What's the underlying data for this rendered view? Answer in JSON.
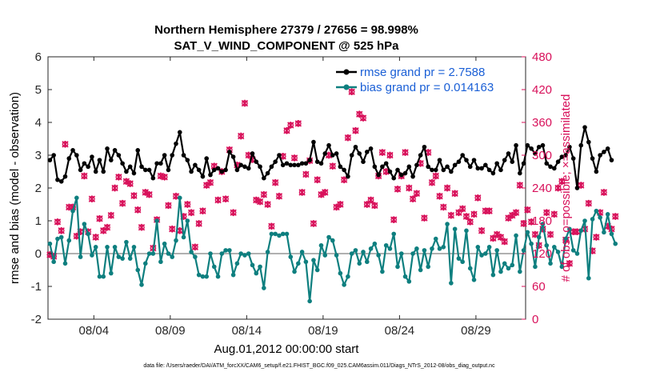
{
  "chart_data": {
    "type": "line",
    "title_line1": "Northern Hemisphere 27379 / 27656 = 98.998%",
    "title_line2": "SAT_V_WIND_COMPONENT @ 525 hPa",
    "ylabel_left": "rmse and bias (model - observation)",
    "ylabel_right": "# of obs: o=possible; ×=assimilated",
    "xlabel": "Aug.01,2012 00:00:00 start",
    "footnote": "data file: /Users/raeder/DAI/ATM_forcXX/CAM6_setup/f.e21.FHIST_BGC.f09_025.CAM6assim.011/Diags_NTrS_2012-08/obs_diag_output.nc",
    "xlim": [
      1,
      32.25
    ],
    "ylim_left": [
      -2,
      6
    ],
    "ylim_right": [
      0,
      480
    ],
    "yticks_left": [
      "-2",
      "-1",
      "0",
      "1",
      "2",
      "3",
      "4",
      "5",
      "6"
    ],
    "yticks_right": [
      "0",
      "60",
      "120",
      "180",
      "240",
      "300",
      "360",
      "420",
      "480"
    ],
    "xticks": [
      {
        "day": 4,
        "label": "08/04"
      },
      {
        "day": 9,
        "label": "08/09"
      },
      {
        "day": 14,
        "label": "08/14"
      },
      {
        "day": 19,
        "label": "08/19"
      },
      {
        "day": 24,
        "label": "08/24"
      },
      {
        "day": 29,
        "label": "08/29"
      }
    ],
    "legend": [
      {
        "label": "rmse grand pr = 2.7588",
        "color": "#000000"
      },
      {
        "label": "bias grand pr = 0.014163",
        "color": "#0e7f7f"
      }
    ],
    "colors": {
      "rmse": "#000000",
      "bias": "#0e7f7f",
      "obs": "#d8105a",
      "zero_line": "#b0b0b0",
      "legend_text": "#1a5fd6",
      "right_axis": "#d8105a"
    },
    "series": [
      {
        "name": "rmse",
        "values": [
          2.85,
          3.0,
          2.25,
          2.2,
          2.35,
          2.9,
          3.15,
          3.0,
          2.55,
          2.75,
          2.65,
          2.95,
          2.5,
          2.85,
          2.5,
          3.2,
          2.85,
          3.15,
          3.0,
          2.75,
          2.5,
          2.65,
          2.45,
          3.15,
          2.65,
          2.55,
          2.55,
          2.3,
          2.75,
          2.75,
          3.0,
          2.55,
          3.0,
          3.35,
          3.7,
          3.0,
          2.85,
          2.5,
          2.7,
          2.55,
          2.35,
          2.9,
          2.4,
          2.55,
          2.6,
          2.5,
          2.55,
          3.1,
          2.95,
          2.55,
          2.7,
          2.65,
          2.6,
          3.05,
          2.8,
          2.65,
          2.3,
          2.45,
          2.65,
          2.8,
          3.0,
          2.7,
          2.75,
          2.7,
          2.7,
          2.7,
          2.75,
          2.75,
          2.85,
          3.4,
          2.8,
          2.75,
          3.05,
          3.3,
          3.0,
          3.05,
          2.65,
          2.55,
          2.35,
          3.0,
          3.25,
          3.05,
          2.8,
          3.1,
          3.2,
          2.65,
          2.4,
          2.65,
          2.75,
          2.5,
          2.3,
          2.55,
          2.4,
          2.45,
          2.65,
          2.35,
          2.7,
          3.0,
          3.25,
          2.65,
          2.55,
          2.55,
          2.85,
          2.55,
          2.65,
          2.5,
          2.7,
          2.8,
          3.0,
          2.85,
          2.65,
          2.85,
          2.6,
          2.6,
          2.7,
          2.55,
          2.45,
          2.75,
          2.55,
          2.85,
          3.05,
          2.8,
          3.3,
          2.45,
          2.75,
          3.3,
          3.2,
          3.05,
          3.25,
          3.3,
          2.75,
          2.65,
          2.6,
          2.8,
          2.95,
          3.0,
          3.25,
          2.9,
          2.0,
          3.3,
          3.85,
          3.4,
          2.9,
          2.5,
          3.0,
          3.1,
          3.2,
          2.85
        ]
      },
      {
        "name": "bias",
        "values": [
          0.3,
          -0.25,
          0.45,
          0.5,
          -0.3,
          0.4,
          1.3,
          1.7,
          -0.1,
          0.9,
          0.6,
          -0.05,
          0.2,
          -0.7,
          -0.7,
          0.2,
          -0.6,
          0.2,
          -0.1,
          -0.15,
          0.35,
          -0.15,
          0.2,
          -0.5,
          -0.95,
          -0.3,
          0.0,
          0.0,
          1.0,
          -0.25,
          0.3,
          0.0,
          -0.1,
          0.4,
          1.7,
          0.5,
          1.0,
          0.05,
          -0.1,
          -0.65,
          -0.7,
          -0.7,
          0.0,
          -0.4,
          -0.7,
          0.0,
          0.1,
          0.1,
          -0.65,
          -0.3,
          0.0,
          -0.05,
          0.0,
          -0.35,
          -0.6,
          -0.4,
          -1.05,
          0.05,
          0.6,
          0.6,
          0.55,
          0.6,
          0.6,
          -0.1,
          -0.55,
          -0.3,
          0.05,
          -0.25,
          -1.45,
          -0.2,
          -0.5,
          0.25,
          -0.05,
          0.5,
          0.4,
          -0.05,
          -0.6,
          -0.95,
          -0.7,
          0.0,
          0.1,
          -0.3,
          0.05,
          -0.25,
          0.15,
          0.3,
          -0.05,
          -0.55,
          0.25,
          0.15,
          0.6,
          -0.4,
          0.0,
          -0.7,
          -0.85,
          0.0,
          0.15,
          -0.5,
          0.1,
          -0.4,
          0.15,
          0.45,
          0.15,
          0.2,
          0.9,
          -0.9,
          0.75,
          -0.15,
          -0.25,
          0.7,
          -0.45,
          -0.8,
          0.2,
          -0.05,
          0.0,
          0.2,
          -0.65,
          0.1,
          -0.55,
          -0.3,
          -0.45,
          -0.35,
          0.55,
          -0.55,
          0.1,
          0.65,
          0.3,
          -0.4,
          0.5,
          0.9,
          0.25,
          -0.3,
          0.2,
          0.05,
          -0.4,
          0.45,
          0.75,
          0.1,
          0.0,
          0.7,
          1.0,
          -0.75,
          1.05,
          1.3,
          1.1,
          0.65,
          1.2,
          0.6,
          0.3
        ]
      },
      {
        "name": "obs_possible",
        "values": [
          118,
          115,
          178,
          162,
          320,
          205,
          205,
          152,
          160,
          262,
          160,
          220,
          150,
          184,
          162,
          168,
          190,
          240,
          260,
          212,
          252,
          248,
          226,
          200,
          168,
          232,
          228,
          130,
          182,
          262,
          260,
          208,
          165,
          225,
          162,
          188,
          210,
          195,
          132,
          175,
          198,
          245,
          250,
          280,
          218,
          270,
          220,
          310,
          195,
          282,
          335,
          395,
          300,
          292,
          218,
          215,
          228,
          210,
          170,
          250,
          225,
          298,
          345,
          355,
          295,
          358,
          232,
          265,
          290,
          175,
          255,
          228,
          232,
          300,
          280,
          205,
          210,
          255,
          332,
          416,
          345,
          375,
          368,
          210,
          218,
          208,
          262,
          305,
          270,
          300,
          182,
          238,
          262,
          305,
          240,
          220,
          230,
          285,
          185,
          305,
          250,
          262,
          225,
          205,
          240,
          190,
          230,
          195,
          202,
          188,
          178,
          192,
          222,
          162,
          198,
          198,
          148,
          155,
          150,
          142,
          185,
          190,
          195,
          245,
          175,
          200,
          178,
          155,
          135,
          165,
          195,
          155,
          192,
          240,
          252,
          145,
          102,
          160,
          160,
          245,
          165,
          212,
          125,
          150,
          195,
          232,
          170,
          165,
          188
        ]
      },
      {
        "name": "obs_assimilated",
        "values": [
          118,
          115,
          178,
          162,
          320,
          205,
          205,
          152,
          160,
          262,
          160,
          220,
          150,
          184,
          162,
          168,
          190,
          240,
          260,
          212,
          252,
          248,
          226,
          200,
          168,
          232,
          228,
          130,
          182,
          262,
          260,
          208,
          165,
          225,
          162,
          188,
          210,
          195,
          132,
          175,
          198,
          245,
          250,
          280,
          218,
          270,
          220,
          310,
          195,
          282,
          335,
          395,
          300,
          292,
          218,
          215,
          228,
          210,
          170,
          250,
          225,
          298,
          345,
          355,
          295,
          358,
          232,
          265,
          290,
          175,
          255,
          228,
          232,
          300,
          280,
          205,
          210,
          255,
          332,
          416,
          345,
          375,
          368,
          210,
          218,
          208,
          262,
          305,
          270,
          300,
          182,
          238,
          262,
          305,
          240,
          220,
          230,
          285,
          185,
          305,
          250,
          262,
          225,
          205,
          240,
          190,
          230,
          195,
          202,
          188,
          178,
          192,
          222,
          162,
          198,
          198,
          148,
          155,
          150,
          142,
          185,
          190,
          195,
          245,
          175,
          200,
          178,
          155,
          135,
          165,
          195,
          155,
          192,
          240,
          252,
          145,
          102,
          160,
          160,
          245,
          165,
          212,
          125,
          150,
          195,
          232,
          170,
          165,
          188
        ]
      }
    ]
  }
}
